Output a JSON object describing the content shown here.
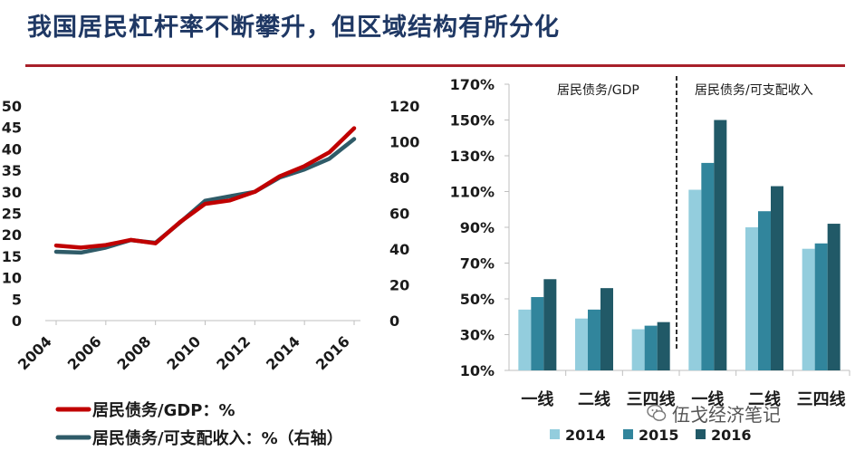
{
  "title": "我国居民杠杆率不断攀升，但区域结构有所分化",
  "watermark": "伍戈经济笔记",
  "colors": {
    "title": "#1f3864",
    "rule": "#a8202a",
    "series_red": "#c00000",
    "series_teal": "#2f5b68",
    "bar_2014": "#93cddd",
    "bar_2015": "#31859c",
    "bar_2016": "#215967"
  },
  "chart_data": [
    {
      "type": "line",
      "x": [
        2004,
        2005,
        2006,
        2007,
        2008,
        2009,
        2010,
        2011,
        2012,
        2013,
        2014,
        2015,
        2016
      ],
      "x_ticks": [
        "2004",
        "2006",
        "2008",
        "2010",
        "2012",
        "2014",
        "2016"
      ],
      "left_axis": {
        "range": [
          0,
          50
        ],
        "ticks": [
          "0",
          "5",
          "10",
          "15",
          "20",
          "25",
          "30",
          "35",
          "40",
          "45",
          "50"
        ]
      },
      "right_axis": {
        "range": [
          0,
          120
        ],
        "ticks": [
          "0",
          "20",
          "40",
          "60",
          "80",
          "100",
          "120"
        ]
      },
      "series": [
        {
          "name": "居民债务/GDP：%",
          "axis": "left",
          "color": "#c00000",
          "values": [
            17.5,
            17.0,
            17.6,
            18.8,
            18.0,
            23.0,
            27.2,
            28.0,
            30.0,
            33.6,
            36.0,
            39.2,
            44.8
          ]
        },
        {
          "name": "居民债务/可支配收入：%（右轴）",
          "axis": "right",
          "color": "#2f5b68",
          "values": [
            38.5,
            38.0,
            40.8,
            45.0,
            43.5,
            55.0,
            67.0,
            69.5,
            72.0,
            80.0,
            84.5,
            90.5,
            101.5
          ]
        }
      ],
      "legend_position": "bottom-left",
      "grid": false
    },
    {
      "type": "bar",
      "categories": [
        "一线",
        "二线",
        "三四线",
        "一线",
        "二线",
        "三四线"
      ],
      "groups": [
        "居民债务/GDP",
        "居民债务/可支配收入"
      ],
      "y_axis": {
        "range": [
          0.1,
          1.7
        ],
        "ticks": [
          "10%",
          "30%",
          "50%",
          "70%",
          "90%",
          "110%",
          "130%",
          "150%",
          "170%"
        ]
      },
      "series": [
        {
          "name": "2014",
          "color": "#93cddd",
          "values": [
            0.44,
            0.39,
            0.33,
            1.11,
            0.9,
            0.78
          ]
        },
        {
          "name": "2015",
          "color": "#31859c",
          "values": [
            0.51,
            0.44,
            0.35,
            1.26,
            0.99,
            0.81
          ]
        },
        {
          "name": "2016",
          "color": "#215967",
          "values": [
            0.61,
            0.56,
            0.37,
            1.5,
            1.13,
            0.92
          ]
        }
      ],
      "legend_position": "bottom",
      "grid": false
    }
  ]
}
